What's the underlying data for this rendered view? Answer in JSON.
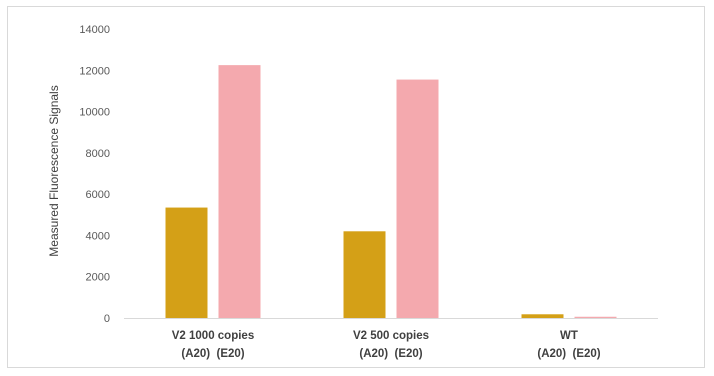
{
  "chart_data": {
    "type": "bar",
    "title": "",
    "xlabel": "",
    "ylabel": "Measured Fluorescence Signals",
    "ylim": [
      0,
      14000
    ],
    "yticks": [
      0,
      2000,
      4000,
      6000,
      8000,
      10000,
      12000,
      14000
    ],
    "grid": false,
    "legend": "none",
    "categories": [
      {
        "line1": "V2 1000 copies",
        "line2": "(A20)  (E20)"
      },
      {
        "line1": "V2 500 copies",
        "line2": "(A20)  (E20)"
      },
      {
        "line1": "WT",
        "line2": "(A20)  (E20)"
      }
    ],
    "series": [
      {
        "values": [
          5350,
          4200,
          180
        ],
        "color": "#d4a017"
      },
      {
        "values": [
          12250,
          11550,
          60
        ],
        "color": "#f4a9ae"
      }
    ]
  }
}
